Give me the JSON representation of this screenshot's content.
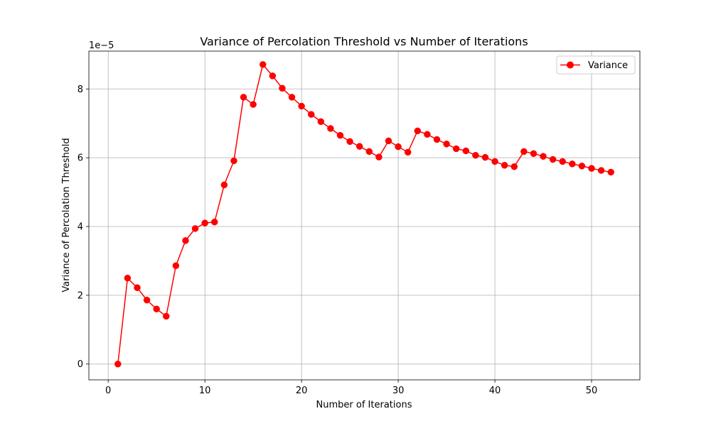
{
  "chart_data": {
    "type": "line",
    "title": "Variance of Percolation Threshold vs Number of Iterations",
    "xlabel": "Number of Iterations",
    "ylabel": "Variance of Percolation Threshold",
    "y_offset_label": "1e−5",
    "xlim": [
      -2,
      55
    ],
    "ylim": [
      -4.6e-06,
      9.1e-05
    ],
    "xticks": [
      0,
      10,
      20,
      30,
      40,
      50
    ],
    "xtick_labels": [
      "0",
      "10",
      "20",
      "30",
      "40",
      "50"
    ],
    "yticks": [
      0,
      2e-05,
      4e-05,
      6e-05,
      8e-05
    ],
    "ytick_labels": [
      "0",
      "2",
      "4",
      "6",
      "8"
    ],
    "grid": true,
    "legend_position": "top-right",
    "series": [
      {
        "name": "Variance",
        "color": "#ff0000",
        "marker": "circle",
        "x": [
          1,
          2,
          3,
          4,
          5,
          6,
          7,
          8,
          9,
          10,
          11,
          12,
          13,
          14,
          15,
          16,
          17,
          18,
          19,
          20,
          21,
          22,
          23,
          24,
          25,
          26,
          27,
          28,
          29,
          30,
          31,
          32,
          33,
          34,
          35,
          36,
          37,
          38,
          39,
          40,
          41,
          42,
          43,
          44,
          45,
          46,
          47,
          48,
          49,
          50,
          51,
          52
        ],
        "y": [
          0,
          2.5e-05,
          2.22e-05,
          1.86e-05,
          1.6e-05,
          1.39e-05,
          2.86e-05,
          3.59e-05,
          3.94e-05,
          4.1e-05,
          4.13e-05,
          5.21e-05,
          5.91e-05,
          7.76e-05,
          7.55e-05,
          8.71e-05,
          8.38e-05,
          8.02e-05,
          7.76e-05,
          7.5e-05,
          7.26e-05,
          7.05e-05,
          6.85e-05,
          6.65e-05,
          6.47e-05,
          6.33e-05,
          6.18e-05,
          6.02e-05,
          6.49e-05,
          6.32e-05,
          6.16e-05,
          6.78e-05,
          6.68e-05,
          6.53e-05,
          6.4e-05,
          6.26e-05,
          6.2e-05,
          6.07e-05,
          6.01e-05,
          5.89e-05,
          5.78e-05,
          5.74e-05,
          6.18e-05,
          6.12e-05,
          6.04e-05,
          5.95e-05,
          5.89e-05,
          5.82e-05,
          5.76e-05,
          5.69e-05,
          5.63e-05,
          5.58e-05
        ]
      }
    ]
  }
}
